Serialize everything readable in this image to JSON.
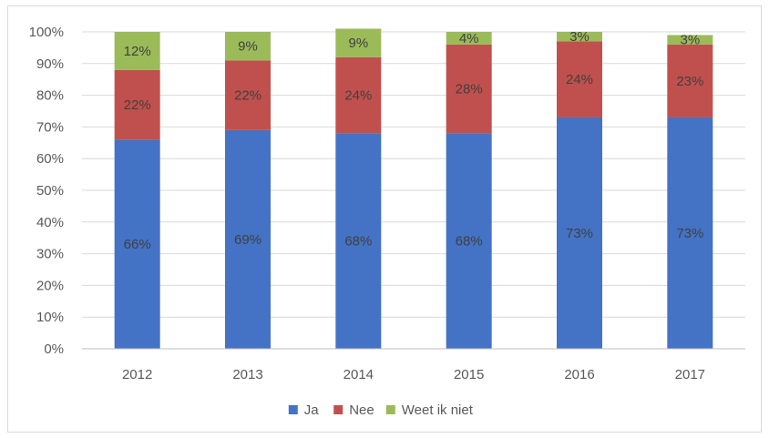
{
  "chart_data": {
    "type": "bar",
    "stacked": true,
    "categories": [
      "2012",
      "2013",
      "2014",
      "2015",
      "2016",
      "2017"
    ],
    "series": [
      {
        "name": "Ja",
        "color": "#4472c4",
        "values": [
          66,
          69,
          68,
          68,
          73,
          73
        ]
      },
      {
        "name": "Nee",
        "color": "#c0504d",
        "values": [
          22,
          22,
          24,
          28,
          24,
          23
        ]
      },
      {
        "name": "Weet ik niet",
        "color": "#9bbb59",
        "values": [
          12,
          9,
          9,
          4,
          3,
          3
        ]
      }
    ],
    "y_ticks": [
      "0%",
      "10%",
      "20%",
      "30%",
      "40%",
      "50%",
      "60%",
      "70%",
      "80%",
      "90%",
      "100%"
    ],
    "ylim": [
      0,
      100
    ],
    "unit": "%",
    "grid": true,
    "legend_position": "bottom"
  }
}
